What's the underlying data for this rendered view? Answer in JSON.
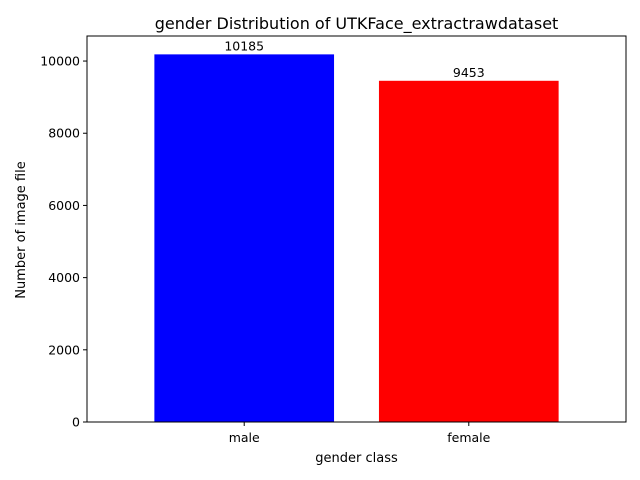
{
  "chart_data": {
    "type": "bar",
    "title": "gender Distribution of UTKFace_extractrawdataset",
    "xlabel": "gender class",
    "ylabel": "Number of image file",
    "categories": [
      "male",
      "female"
    ],
    "values": [
      10185,
      9453
    ],
    "data_labels": [
      "10185",
      "9453"
    ],
    "bar_colors": [
      "#0000ff",
      "#ff0000"
    ],
    "ylim": [
      0,
      10694
    ],
    "yticks": [
      0,
      2000,
      4000,
      6000,
      8000,
      10000
    ],
    "ytick_labels": [
      "0",
      "2000",
      "4000",
      "6000",
      "8000",
      "10000"
    ],
    "grid": false,
    "legend": false
  }
}
